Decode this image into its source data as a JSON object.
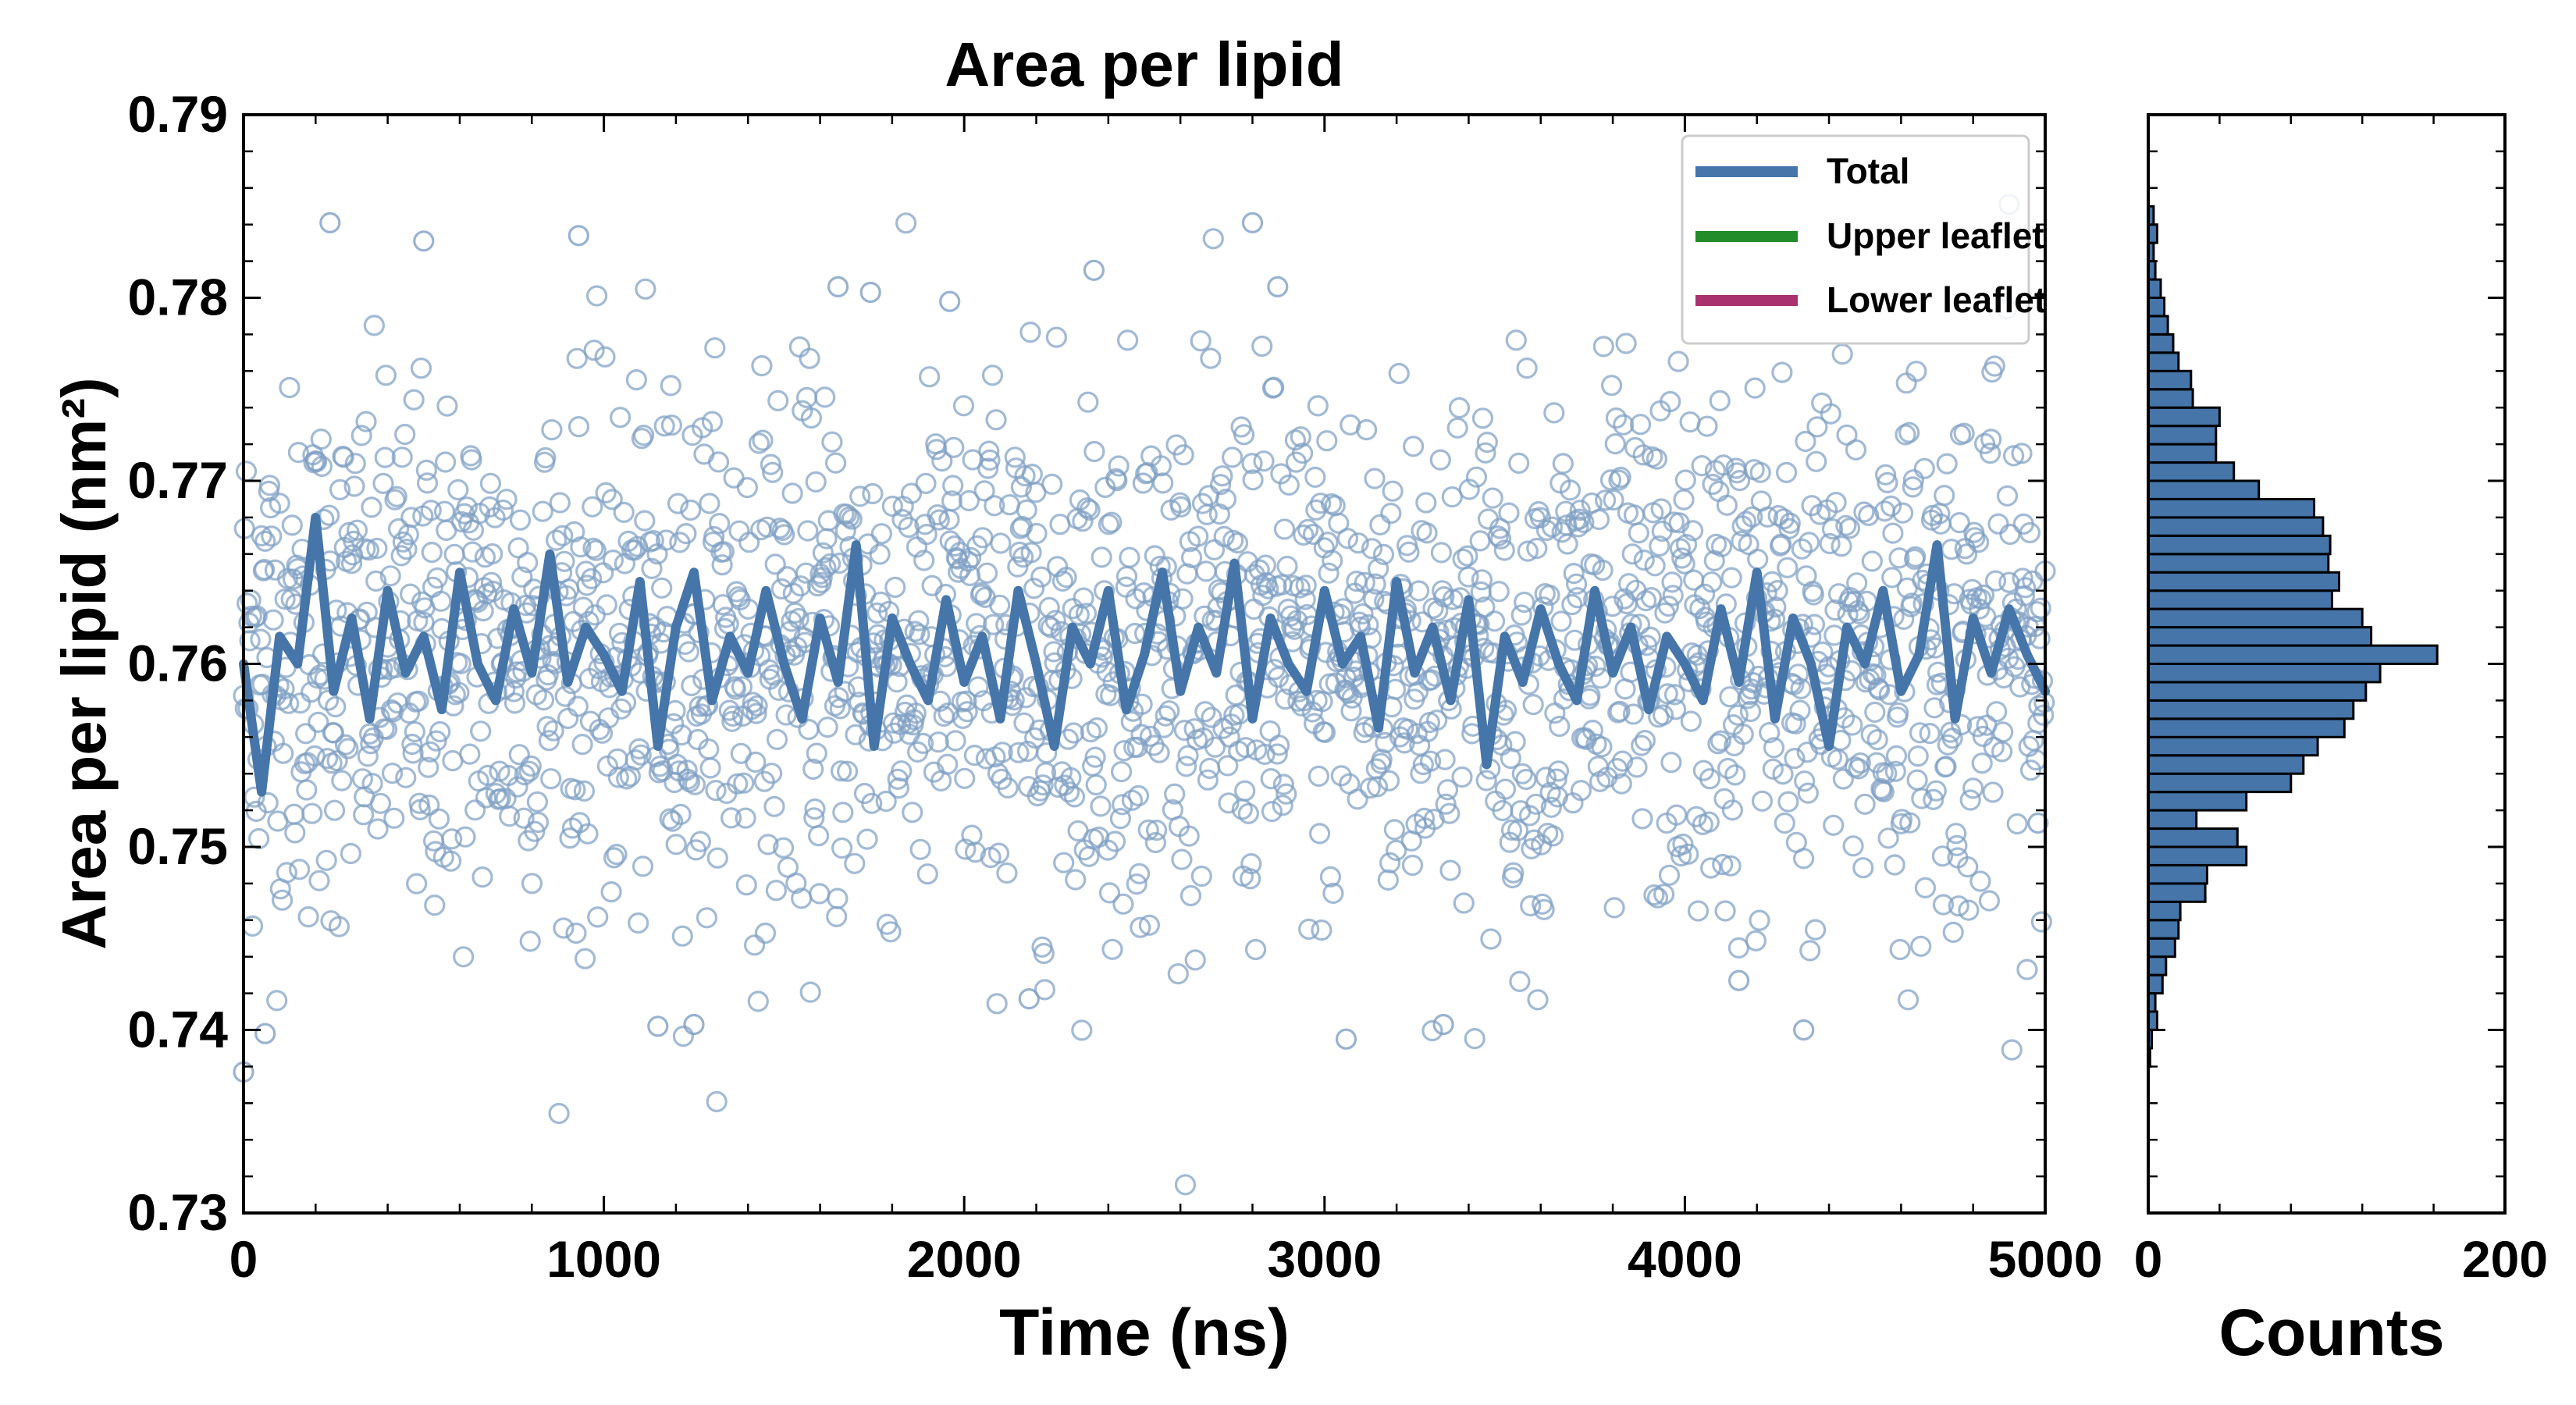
{
  "chart_data": [
    {
      "type": "scatter",
      "title": "Area per lipid",
      "xlabel": "Time (ns)",
      "ylabel": "Area per lipid (nm²)",
      "xlim": [
        0,
        5000
      ],
      "ylim": [
        0.73,
        0.79
      ],
      "x_ticks": [
        "0",
        "1000",
        "2000",
        "3000",
        "4000",
        "5000"
      ],
      "y_ticks": [
        "0.73",
        "0.74",
        "0.75",
        "0.76",
        "0.77",
        "0.78",
        "0.79"
      ],
      "grid": false,
      "legend_position": "top-right",
      "scatter_color": "#7f9fc4",
      "scatter_samples": {
        "x": [
          0,
          60,
          240,
          500,
          930,
          1150,
          1250,
          1650,
          1740,
          1960,
          2180,
          2360,
          2800,
          2870,
          3060,
          3330,
          4150,
          4330,
          4900,
          4980
        ],
        "y": [
          0.7377,
          0.7398,
          0.7841,
          0.7831,
          0.7834,
          0.7402,
          0.7403,
          0.7806,
          0.7803,
          0.7798,
          0.7417,
          0.7815,
          0.7841,
          0.7806,
          0.7395,
          0.7403,
          0.7427,
          0.74,
          0.7851,
          0.7513
        ]
      },
      "series": [
        {
          "name": "Total",
          "color": "#4575a9",
          "x": [
            0,
            50,
            100,
            150,
            200,
            250,
            300,
            350,
            400,
            450,
            500,
            550,
            600,
            650,
            700,
            750,
            800,
            850,
            900,
            950,
            1000,
            1050,
            1100,
            1150,
            1200,
            1250,
            1300,
            1350,
            1400,
            1450,
            1500,
            1550,
            1600,
            1650,
            1700,
            1750,
            1800,
            1850,
            1900,
            1950,
            2000,
            2050,
            2100,
            2150,
            2200,
            2250,
            2300,
            2350,
            2400,
            2450,
            2500,
            2550,
            2600,
            2650,
            2700,
            2750,
            2800,
            2850,
            2900,
            2950,
            3000,
            3050,
            3100,
            3150,
            3200,
            3250,
            3300,
            3350,
            3400,
            3450,
            3500,
            3550,
            3600,
            3650,
            3700,
            3750,
            3800,
            3850,
            3900,
            3950,
            4000,
            4050,
            4100,
            4150,
            4200,
            4250,
            4300,
            4350,
            4400,
            4450,
            4500,
            4550,
            4600,
            4650,
            4700,
            4750,
            4800,
            4850,
            4900,
            4950,
            5000
          ],
          "y": [
            0.76,
            0.753,
            0.7615,
            0.76,
            0.768,
            0.7585,
            0.7625,
            0.757,
            0.764,
            0.7595,
            0.7615,
            0.7575,
            0.765,
            0.76,
            0.758,
            0.763,
            0.7595,
            0.766,
            0.759,
            0.762,
            0.7605,
            0.7585,
            0.7645,
            0.7555,
            0.762,
            0.765,
            0.758,
            0.7615,
            0.7595,
            0.764,
            0.76,
            0.757,
            0.7625,
            0.759,
            0.7665,
            0.7555,
            0.7625,
            0.76,
            0.758,
            0.7635,
            0.759,
            0.7615,
            0.757,
            0.764,
            0.76,
            0.7555,
            0.762,
            0.76,
            0.764,
            0.7575,
            0.7605,
            0.765,
            0.7585,
            0.762,
            0.7595,
            0.7655,
            0.757,
            0.7625,
            0.76,
            0.7585,
            0.764,
            0.76,
            0.7615,
            0.7565,
            0.7645,
            0.7595,
            0.762,
            0.758,
            0.7635,
            0.7545,
            0.7615,
            0.759,
            0.763,
            0.76,
            0.758,
            0.764,
            0.7595,
            0.762,
            0.7575,
            0.7615,
            0.76,
            0.758,
            0.763,
            0.759,
            0.765,
            0.757,
            0.7625,
            0.76,
            0.7555,
            0.762,
            0.76,
            0.764,
            0.7585,
            0.7605,
            0.7665,
            0.757,
            0.7625,
            0.7595,
            0.763,
            0.7605,
            0.7585
          ]
        },
        {
          "name": "Upper leaflet",
          "color": "#228b2a",
          "x": [],
          "y": []
        },
        {
          "name": "Lower leaflet",
          "color": "#a9326e",
          "x": [],
          "y": []
        }
      ]
    },
    {
      "type": "bar",
      "orientation": "horizontal",
      "xlabel": "Counts",
      "xlim": [
        0,
        200
      ],
      "x_ticks": [
        "0",
        "200"
      ],
      "ylim": [
        0.73,
        0.79
      ],
      "bar_color": "#4575a9",
      "bin_width": 0.001,
      "bin_centers": [
        0.7385,
        0.7395,
        0.7405,
        0.7415,
        0.7425,
        0.7435,
        0.7445,
        0.7455,
        0.7465,
        0.7475,
        0.7485,
        0.7495,
        0.7505,
        0.7515,
        0.7525,
        0.7535,
        0.7545,
        0.7555,
        0.7565,
        0.7575,
        0.7585,
        0.7595,
        0.7605,
        0.7615,
        0.7625,
        0.7635,
        0.7645,
        0.7655,
        0.7665,
        0.7675,
        0.7685,
        0.7695,
        0.7705,
        0.7715,
        0.7725,
        0.7735,
        0.7745,
        0.7755,
        0.7765,
        0.7775,
        0.7785,
        0.7795,
        0.7805,
        0.7815,
        0.7825,
        0.7835,
        0.7845
      ],
      "values": [
        1,
        2,
        5,
        4,
        8,
        10,
        15,
        17,
        18,
        32,
        33,
        55,
        50,
        27,
        55,
        80,
        87,
        95,
        110,
        115,
        122,
        130,
        162,
        125,
        120,
        103,
        107,
        101,
        102,
        98,
        93,
        62,
        48,
        38,
        38,
        40,
        25,
        24,
        17,
        14,
        11,
        9,
        7,
        4,
        3,
        5,
        3
      ]
    }
  ]
}
